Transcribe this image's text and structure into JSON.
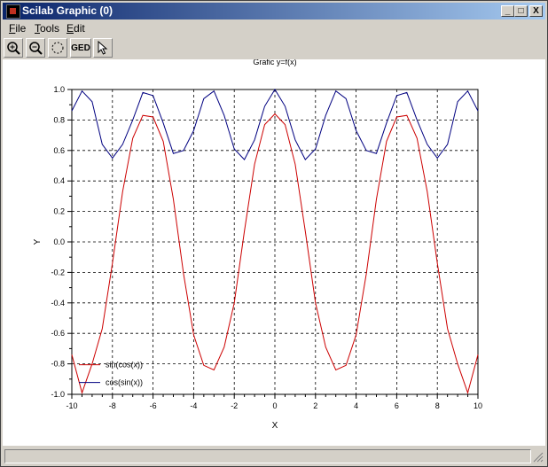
{
  "window": {
    "title": "Scilab Graphic (0)"
  },
  "controls": {
    "minimize": "_",
    "maximize": "□",
    "close": "X"
  },
  "menu": [
    {
      "first": "F",
      "rest": "ile"
    },
    {
      "first": "T",
      "rest": "ools"
    },
    {
      "first": "E",
      "rest": "dit"
    }
  ],
  "toolbar": {
    "icons": [
      "zoom-in-icon",
      "zoom-out-icon",
      "rotate-icon",
      "ged-icon",
      "pointer-icon"
    ],
    "ged_label": "GED"
  },
  "chart_data": {
    "type": "line",
    "title": "Grafic y=f(x)",
    "xlabel": "X",
    "ylabel": "Y",
    "xlim": [
      -10,
      10
    ],
    "ylim": [
      -1,
      1
    ],
    "xticks": [
      "-10",
      "-8",
      "-6",
      "-4",
      "-2",
      "0",
      "2",
      "4",
      "6",
      "8",
      "10"
    ],
    "yticks": [
      "1.0",
      "0.8",
      "0.6",
      "0.4",
      "0.2",
      "0.0",
      "-0.2",
      "-0.4",
      "-0.6",
      "-0.8",
      "-1.0"
    ],
    "grid": true,
    "legend_position": "bottom-left",
    "series": [
      {
        "name": "sin(cos(x))",
        "color": "#cc0000",
        "x": [
          -10,
          -9.5,
          -9,
          -8.5,
          -8,
          -7.5,
          -7,
          -6.5,
          -6,
          -5.5,
          -5,
          -4.5,
          -4,
          -3.5,
          -3,
          -2.5,
          -2,
          -1.5,
          -1,
          -0.5,
          0,
          0.5,
          1,
          1.5,
          2,
          2.5,
          3,
          3.5,
          4,
          4.5,
          5,
          5.5,
          6,
          6.5,
          7,
          7.5,
          8,
          8.5,
          9,
          9.5,
          10
        ],
        "y": [
          -0.74,
          -0.99,
          -0.8,
          -0.57,
          -0.14,
          0.33,
          0.68,
          0.83,
          0.82,
          0.66,
          0.28,
          -0.21,
          -0.61,
          -0.81,
          -0.84,
          -0.69,
          -0.4,
          0.07,
          0.51,
          0.77,
          0.84,
          0.77,
          0.51,
          0.07,
          -0.4,
          -0.69,
          -0.84,
          -0.81,
          -0.61,
          -0.21,
          0.28,
          0.66,
          0.82,
          0.83,
          0.68,
          0.33,
          -0.14,
          -0.57,
          -0.8,
          -0.99,
          -0.74
        ]
      },
      {
        "name": "cos(sin(x))",
        "color": "#000080",
        "x": [
          -10,
          -9.5,
          -9,
          -8.5,
          -8,
          -7.5,
          -7,
          -6.5,
          -6,
          -5.5,
          -5,
          -4.5,
          -4,
          -3.5,
          -3,
          -2.5,
          -2,
          -1.5,
          -1,
          -0.5,
          0,
          0.5,
          1,
          1.5,
          2,
          2.5,
          3,
          3.5,
          4,
          4.5,
          5,
          5.5,
          6,
          6.5,
          7,
          7.5,
          8,
          8.5,
          9,
          9.5,
          10
        ],
        "y": [
          0.86,
          0.99,
          0.92,
          0.64,
          0.55,
          0.64,
          0.8,
          0.98,
          0.96,
          0.78,
          0.58,
          0.6,
          0.73,
          0.94,
          0.99,
          0.83,
          0.61,
          0.54,
          0.67,
          0.89,
          1.0,
          0.89,
          0.67,
          0.54,
          0.61,
          0.83,
          0.99,
          0.94,
          0.73,
          0.6,
          0.58,
          0.78,
          0.96,
          0.98,
          0.8,
          0.64,
          0.55,
          0.64,
          0.92,
          0.99,
          0.86
        ]
      }
    ]
  }
}
